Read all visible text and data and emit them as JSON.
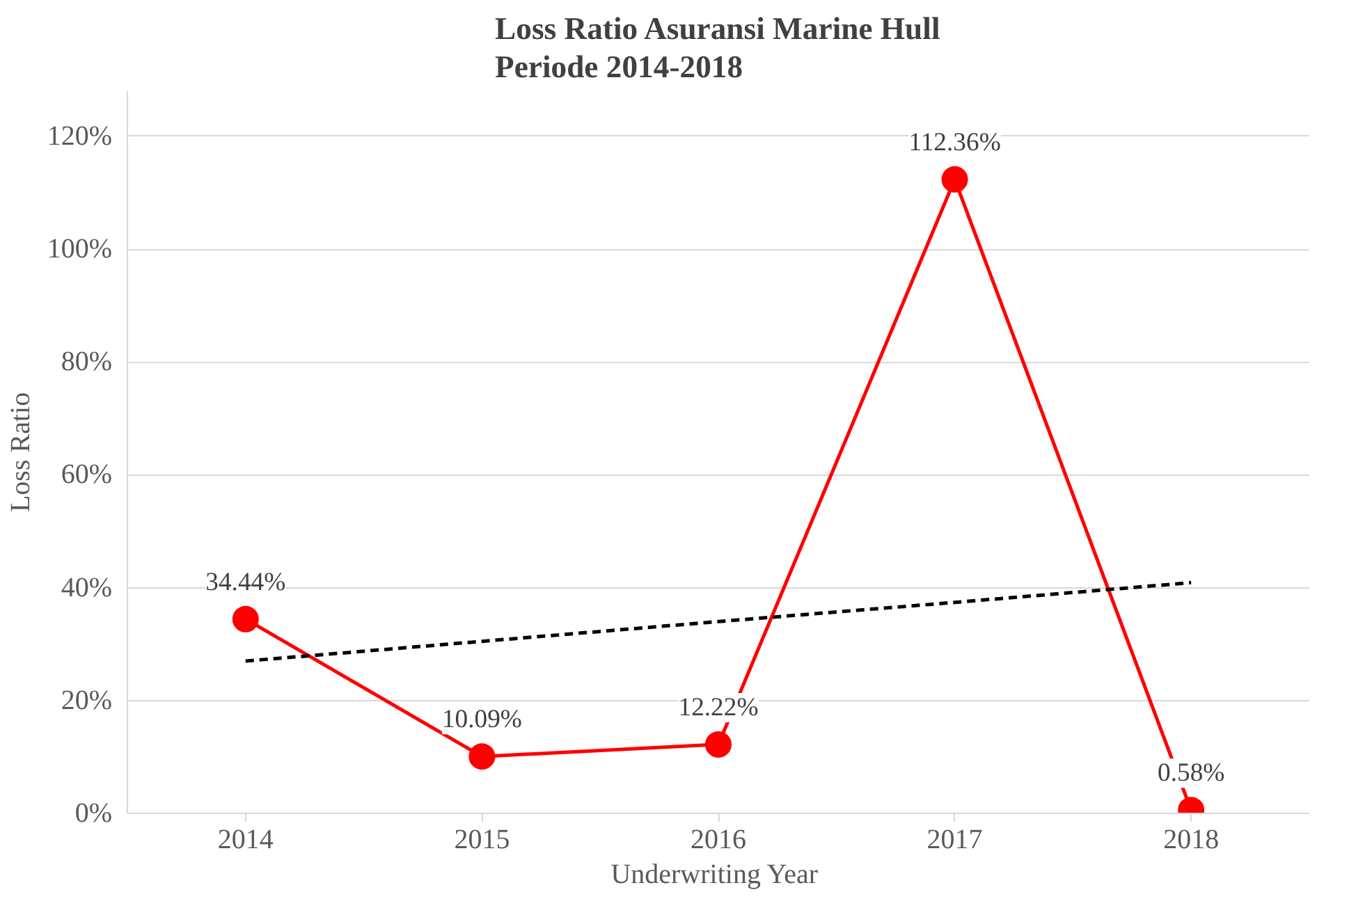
{
  "chart_data": {
    "type": "line",
    "title": "Loss Ratio Asuransi Marine Hull\nPeriode 2014-2018",
    "xlabel": "Underwriting  Year",
    "ylabel": "Loss Ratio",
    "categories": [
      "2014",
      "2015",
      "2016",
      "2017",
      "2018"
    ],
    "series": [
      {
        "color": "#ff0000",
        "values": [
          34.44,
          10.09,
          12.22,
          112.36,
          0.58
        ],
        "value_labels": [
          "34.44%",
          "10.09%",
          "12.22%",
          "112.36%",
          "0.58%"
        ],
        "marker": "circle",
        "line_style": "solid"
      },
      {
        "type": "line",
        "color": "#000000",
        "values": [
          27.0,
          30.5,
          34.0,
          37.4,
          40.9
        ],
        "marker": "none",
        "line_style": "dashed"
      }
    ],
    "ylim": [
      0,
      128
    ],
    "yticks": [
      {
        "value": 0,
        "label": "0%"
      },
      {
        "value": 20,
        "label": "20%"
      },
      {
        "value": 40,
        "label": "40%"
      },
      {
        "value": 60,
        "label": "60%"
      },
      {
        "value": 80,
        "label": "80%"
      },
      {
        "value": 100,
        "label": "100%"
      },
      {
        "value": 120,
        "label": "120%"
      }
    ],
    "grid": "y"
  }
}
